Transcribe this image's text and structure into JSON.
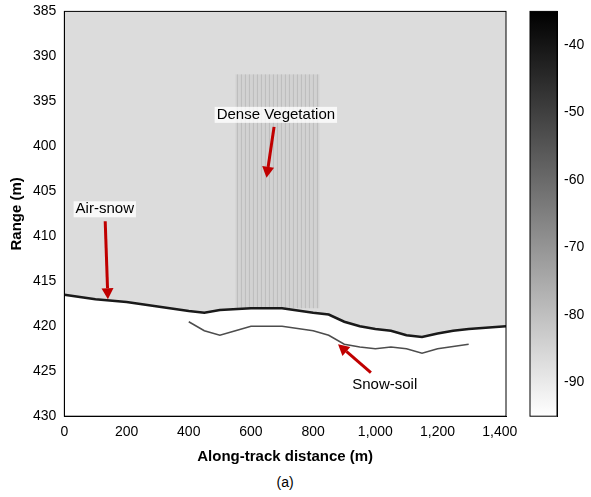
{
  "chart_data": {
    "type": "echogram",
    "caption": "(a)",
    "x_label": "Along-track distance (m)",
    "y_label": "Range (m)",
    "xlim": [
      0,
      1420
    ],
    "xticks": [
      0,
      200,
      400,
      600,
      800,
      1000,
      1200,
      1400
    ],
    "ylim": [
      385,
      430
    ],
    "yticks": [
      385,
      390,
      395,
      400,
      405,
      410,
      415,
      420,
      425,
      430
    ],
    "y_reversed": true,
    "grid": false,
    "series": [
      {
        "color": "#1a1a1a",
        "marker": "none",
        "line_style": "solid",
        "x": [
          0,
          100,
          200,
          300,
          400,
          450,
          500,
          600,
          700,
          800,
          850,
          900,
          950,
          1000,
          1050,
          1100,
          1150,
          1200,
          1250,
          1300,
          1420
        ],
        "values": [
          416.5,
          417,
          417.3,
          417.8,
          418.3,
          418.5,
          418.2,
          418,
          418,
          418.5,
          418.7,
          419.5,
          420,
          420.3,
          420.5,
          421,
          421.2,
          420.8,
          420.5,
          420.3,
          420
        ]
      },
      {
        "color": "#4d4d4d",
        "marker": "none",
        "line_style": "solid",
        "x": [
          400,
          450,
          500,
          550,
          600,
          700,
          800,
          850,
          900,
          950,
          1000,
          1050,
          1100,
          1150,
          1200,
          1300
        ],
        "values": [
          419.5,
          420.5,
          421,
          420.5,
          420,
          420,
          420.5,
          421,
          422,
          422.3,
          422.5,
          422.3,
          422.5,
          423,
          422.5,
          422
        ]
      }
    ],
    "shaded_regions": [
      {
        "x": [
          550,
          820
        ],
        "y": [
          392,
          418
        ]
      }
    ],
    "annotations": [
      {
        "text": "Air-snow",
        "text_at": [
          130,
          407
        ],
        "point": [
          140,
          417
        ],
        "color": "#c00000"
      },
      {
        "text": "Dense Vegetation",
        "text_at": [
          680,
          396.5
        ],
        "point": [
          650,
          403.5
        ],
        "color": "#c00000"
      },
      {
        "text": "Snow-soil",
        "text_at": [
          1030,
          426.5
        ],
        "point": [
          880,
          422
        ],
        "color": "#c00000"
      }
    ],
    "colorbar": {
      "range": [
        -95,
        -35
      ],
      "ticks": [
        -90,
        -80,
        -70,
        -60,
        -50,
        -40
      ],
      "colors": [
        "#ffffff",
        "#000000"
      ]
    }
  }
}
